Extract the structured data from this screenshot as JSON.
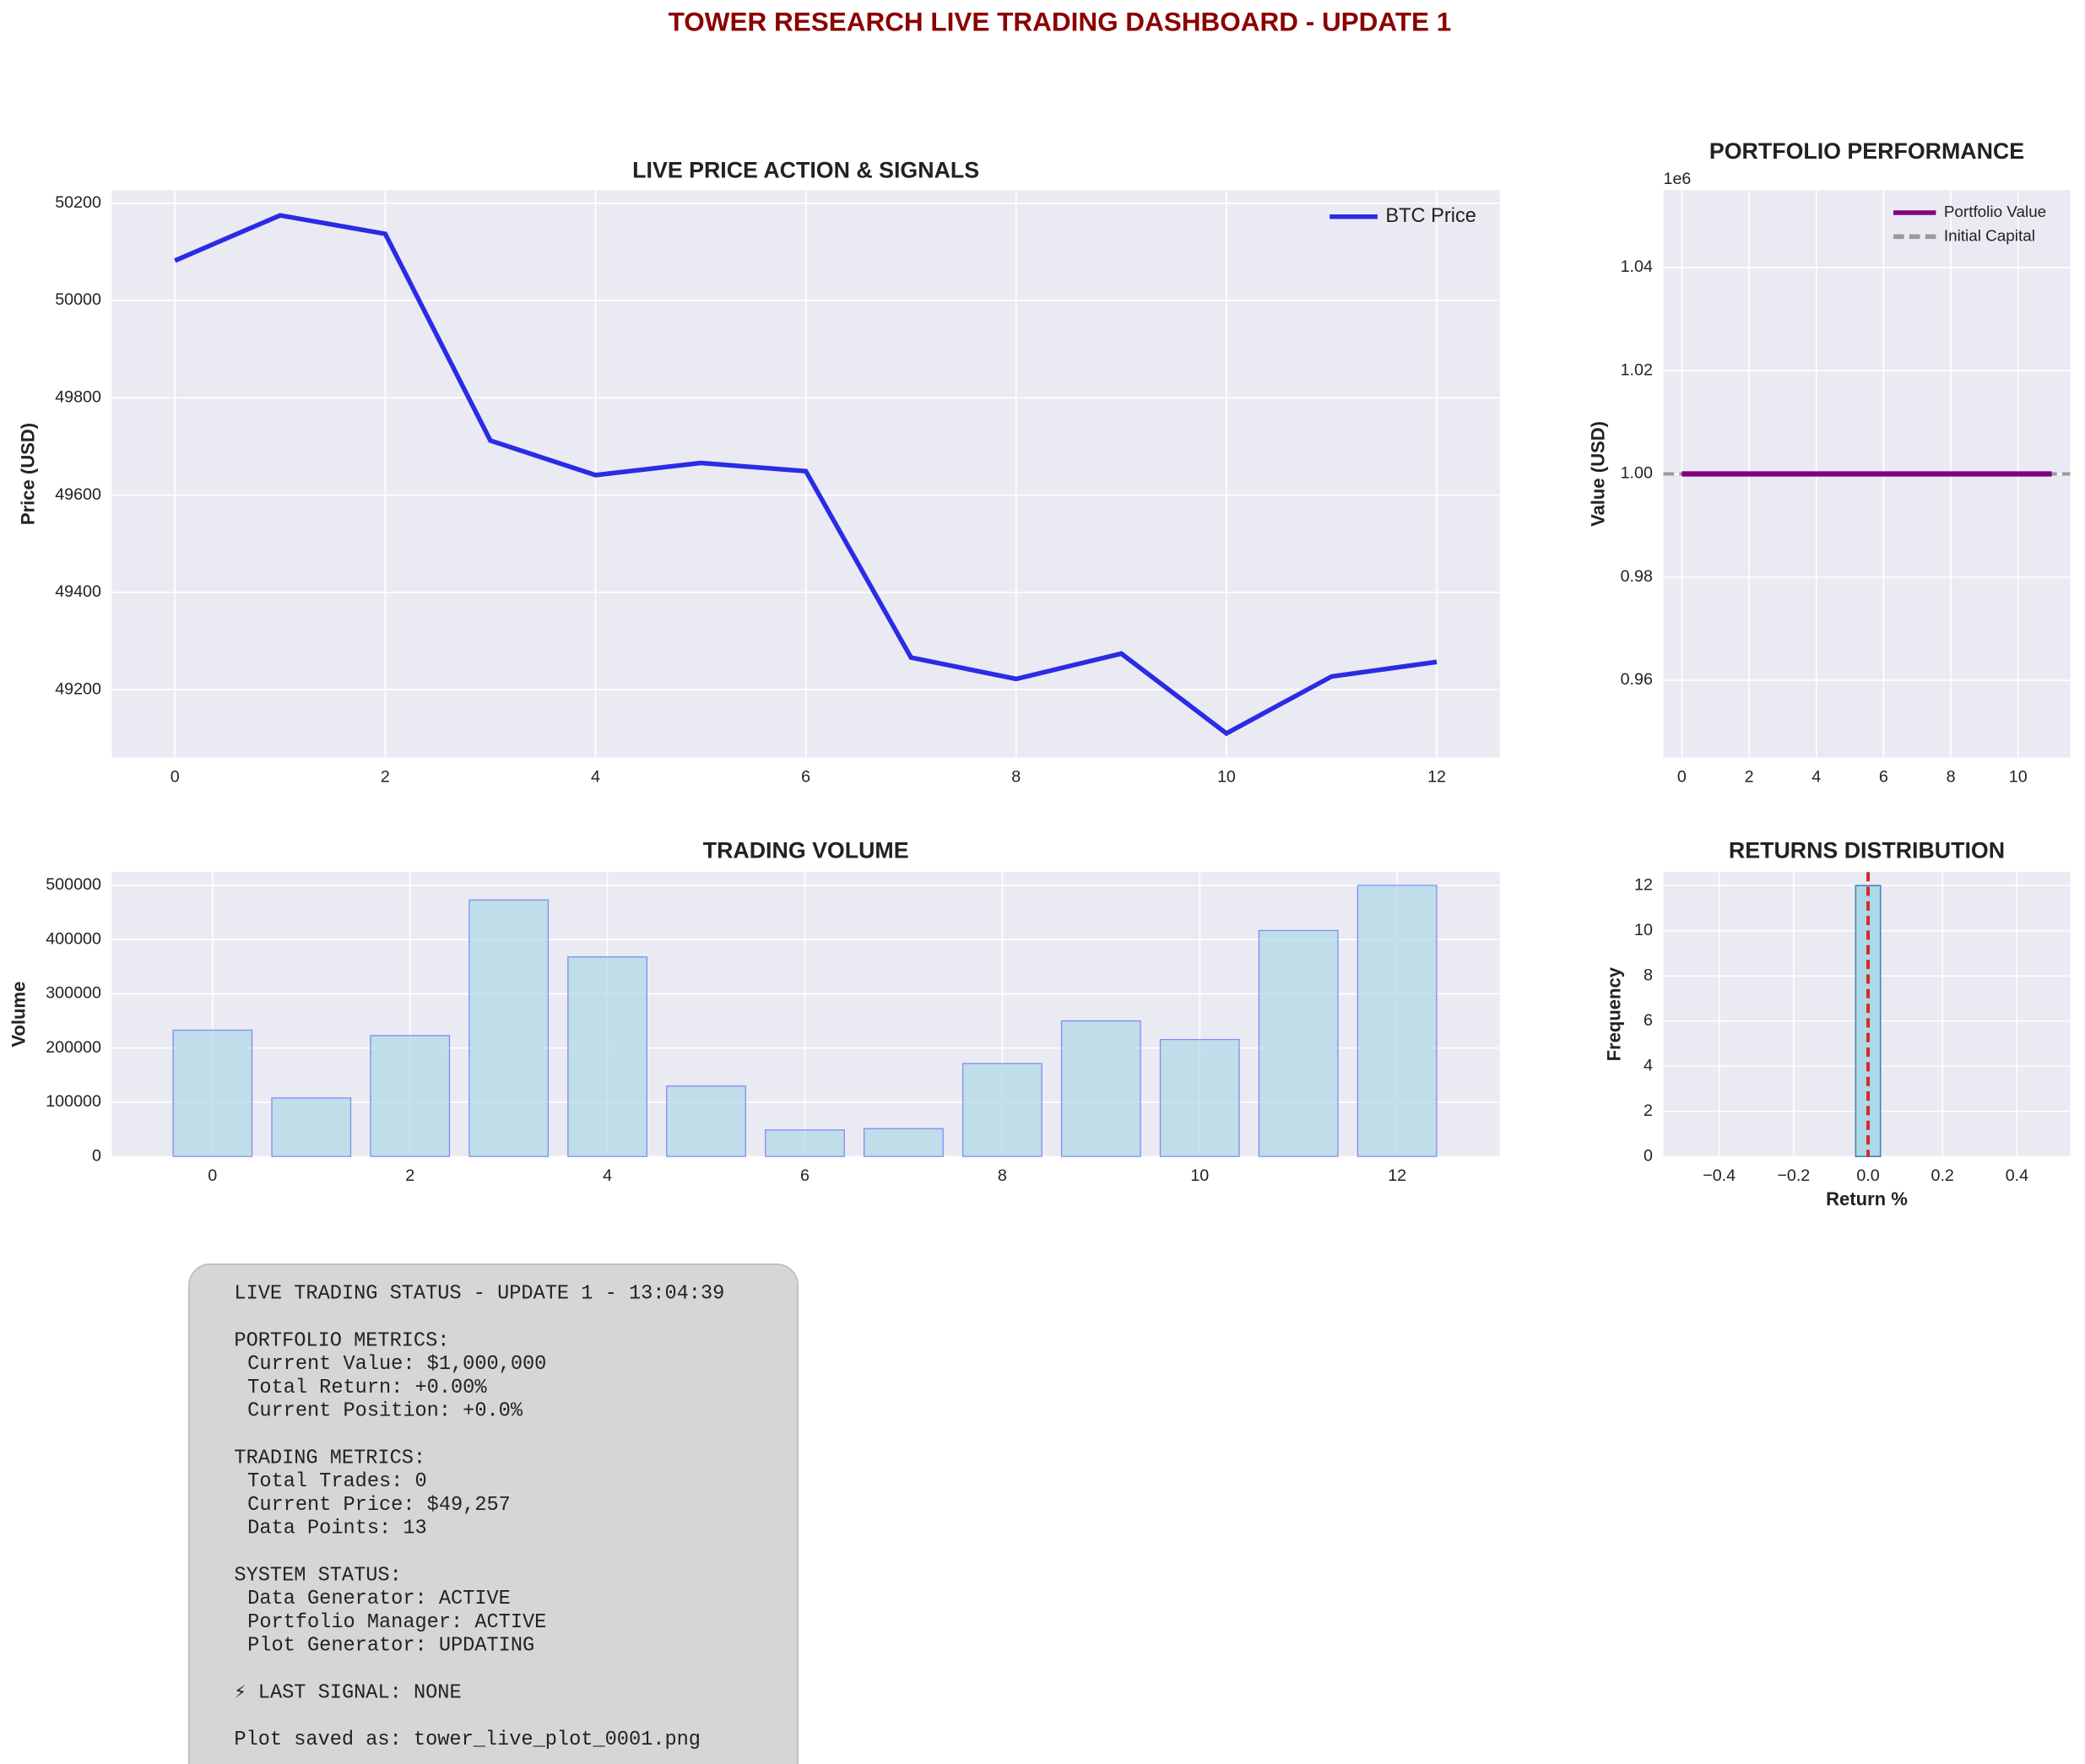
{
  "title": "TOWER RESEARCH LIVE TRADING DASHBOARD - UPDATE 1",
  "chart_data": [
    {
      "type": "line",
      "title": "LIVE PRICE ACTION & SIGNALS",
      "y_label": "Price (USD)",
      "x": [
        0,
        1,
        2,
        3,
        4,
        5,
        6,
        7,
        8,
        9,
        10,
        11,
        12
      ],
      "series": [
        {
          "name": "BTC Price",
          "color": "#2b2be6",
          "values": [
            50082,
            50175,
            50137,
            49712,
            49641,
            49666,
            49649,
            49266,
            49222,
            49274,
            49110,
            49227,
            49257
          ]
        }
      ],
      "xlim": [
        -0.6,
        12.6
      ],
      "xticks": [
        0,
        2,
        4,
        6,
        8,
        10,
        12
      ],
      "ylim": [
        49060,
        50227
      ],
      "yticks": [
        49200,
        49400,
        49600,
        49800,
        50000,
        50200
      ],
      "grid": true,
      "legend": "upper right"
    },
    {
      "type": "line",
      "title": "PORTFOLIO PERFORMANCE",
      "y_label": "Value (USD)",
      "y_offset_label": "1e6",
      "x": [
        0,
        1,
        2,
        3,
        4,
        5,
        6,
        7,
        8,
        9,
        10,
        11
      ],
      "series": [
        {
          "name": "Portfolio Value",
          "color": "#800080",
          "values": [
            1000000,
            1000000,
            1000000,
            1000000,
            1000000,
            1000000,
            1000000,
            1000000,
            1000000,
            1000000,
            1000000,
            1000000
          ]
        }
      ],
      "hlines": [
        {
          "name": "Initial Capital",
          "value": 1000000,
          "color": "#999999"
        }
      ],
      "xlim": [
        -0.55,
        11.55
      ],
      "xticks": [
        0,
        2,
        4,
        6,
        8,
        10
      ],
      "ylim": [
        945000,
        1055000
      ],
      "yticks": [
        {
          "value": 960000,
          "label": "0.96"
        },
        {
          "value": 980000,
          "label": "0.98"
        },
        {
          "value": 1000000,
          "label": "1.00"
        },
        {
          "value": 1020000,
          "label": "1.02"
        },
        {
          "value": 1040000,
          "label": "1.04"
        }
      ],
      "grid": true,
      "legend": "upper right"
    },
    {
      "type": "bar",
      "title": "TRADING VOLUME",
      "y_label": "Volume",
      "x": [
        0,
        1,
        2,
        3,
        4,
        5,
        6,
        7,
        8,
        9,
        10,
        11,
        12
      ],
      "values": [
        233000,
        108000,
        223000,
        473000,
        368000,
        130000,
        49000,
        51500,
        171500,
        250000,
        215700,
        416700,
        500000
      ],
      "color": "#add8e6",
      "edge_color": "#4a4aff",
      "xlim": [
        -1.02,
        13.04
      ],
      "xticks": [
        0,
        2,
        4,
        6,
        8,
        10,
        12
      ],
      "ylim": [
        0,
        524500
      ],
      "yticks": [
        0,
        100000,
        200000,
        300000,
        400000,
        500000
      ],
      "grid": true
    },
    {
      "type": "histogram",
      "title": "RETURNS DISTRIBUTION",
      "y_label": "Frequency",
      "x_label": "Return %",
      "bins": [
        -0.5,
        -0.4333,
        -0.3667,
        -0.3,
        -0.2333,
        -0.1667,
        -0.1,
        -0.0333,
        0.0333,
        0.1,
        0.1667,
        0.2333,
        0.3,
        0.3667,
        0.4333,
        0.5
      ],
      "counts": [
        0,
        0,
        0,
        0,
        0,
        0,
        0,
        12,
        0,
        0,
        0,
        0,
        0,
        0,
        0
      ],
      "color": "#add8e6",
      "edge_color": "#4682b4",
      "vline": {
        "value": 0,
        "color": "#d62728"
      },
      "xlim": [
        -0.55,
        0.543
      ],
      "xticks": [
        {
          "value": -0.4,
          "label": "−0.4"
        },
        {
          "value": -0.2,
          "label": "−0.2"
        },
        {
          "value": 0,
          "label": "0.0"
        },
        0.2,
        0.4
      ],
      "ylim": [
        0,
        12.6
      ],
      "yticks": [
        0,
        2,
        4,
        6,
        8,
        10,
        12
      ],
      "grid": true
    }
  ],
  "status_panel": {
    "blocks": [
      [
        "LIVE TRADING STATUS - UPDATE 1 - 13:04:39"
      ],
      [
        "PORTFOLIO METRICS:",
        "Current Value: $1,000,000",
        "Total Return: +0.00%",
        "Current Position: +0.0%"
      ],
      [
        "TRADING METRICS:",
        "Total Trades: 0",
        "Current Price: $49,257",
        "Data Points: 13"
      ],
      [
        "SYSTEM STATUS:",
        "Data Generator: ACTIVE",
        "Portfolio Manager: ACTIVE",
        "Plot Generator: UPDATING"
      ],
      [
        "⚡ LAST SIGNAL: NONE"
      ],
      [
        "Plot saved as: tower_live_plot_0001.png"
      ]
    ]
  }
}
